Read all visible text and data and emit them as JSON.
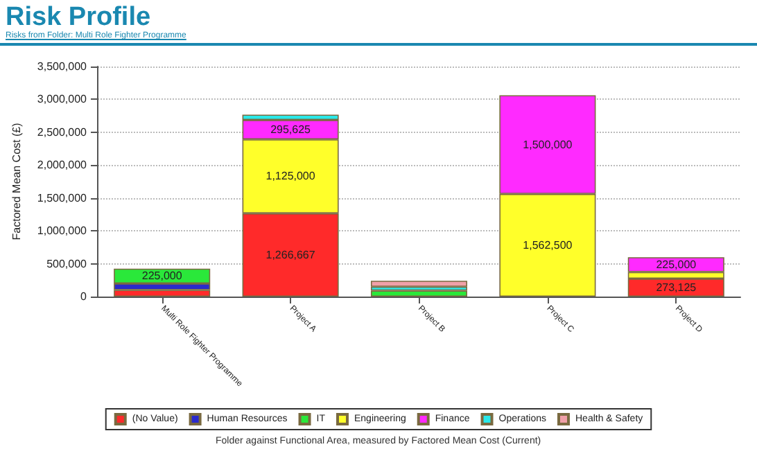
{
  "chart_data": {
    "type": "bar",
    "title": "Risk Profile",
    "subtitle": "Risks from Folder: Multi Role Fighter Programme",
    "ylabel": "Factored Mean Cost (£)",
    "categories": [
      "Multi Role Fighter Programme",
      "Project A",
      "Project B",
      "Project C",
      "Project D"
    ],
    "stacked": true,
    "ylim": [
      0,
      3500000
    ],
    "yticks": [
      {
        "value": 0,
        "label": "0"
      },
      {
        "value": 500000,
        "label": "500,000"
      },
      {
        "value": 1000000,
        "label": "1,000,000"
      },
      {
        "value": 1500000,
        "label": "1,500,000"
      },
      {
        "value": 2000000,
        "label": "2,000,000"
      },
      {
        "value": 2500000,
        "label": "2,500,000"
      },
      {
        "value": 3000000,
        "label": "3,000,000"
      },
      {
        "value": 3500000,
        "label": "3,500,000"
      }
    ],
    "grid": "y",
    "legend": "bottom",
    "series": [
      {
        "name": "(No Value)",
        "color": "#ff2a2a",
        "values": [
          100000,
          1266667,
          null,
          null,
          273125
        ],
        "value_labels": [
          null,
          "1,266,667",
          null,
          null,
          "273,125"
        ]
      },
      {
        "name": "Human Resources",
        "color": "#2a2acc",
        "values": [
          100000,
          null,
          null,
          null,
          null
        ],
        "value_labels": [
          null,
          null,
          null,
          null,
          null
        ]
      },
      {
        "name": "IT",
        "color": "#2ae83a",
        "values": [
          225000,
          null,
          90000,
          null,
          null
        ],
        "value_labels": [
          "225,000",
          null,
          null,
          null,
          null
        ]
      },
      {
        "name": "Engineering",
        "color": "#ffff2a",
        "values": [
          null,
          1125000,
          null,
          1562500,
          100000
        ],
        "value_labels": [
          null,
          "1,125,000",
          null,
          "1,562,500",
          null
        ]
      },
      {
        "name": "Finance",
        "color": "#ff2aff",
        "values": [
          null,
          295625,
          null,
          1500000,
          225000
        ],
        "value_labels": [
          null,
          "295,625",
          null,
          "1,500,000",
          "225,000"
        ]
      },
      {
        "name": "Operations",
        "color": "#2ae8e8",
        "values": [
          null,
          80000,
          60000,
          null,
          null
        ],
        "value_labels": [
          null,
          null,
          null,
          null,
          null
        ]
      },
      {
        "name": "Health & Safety",
        "color": "#f0a0a8",
        "values": [
          null,
          null,
          90000,
          null,
          null
        ],
        "value_labels": [
          null,
          null,
          null,
          null,
          null
        ]
      }
    ],
    "annotations": [
      "Folder against Functional Area, measured by Factored Mean Cost (Current)"
    ]
  }
}
